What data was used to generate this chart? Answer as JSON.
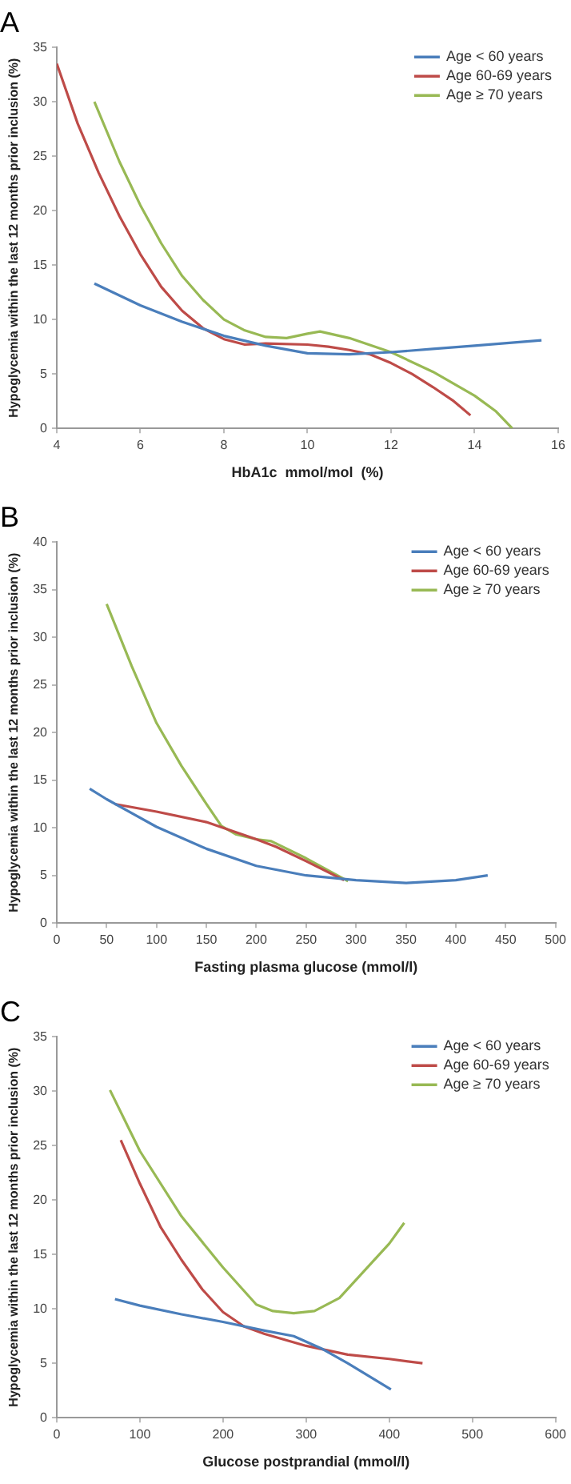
{
  "chart_data": [
    {
      "type": "line",
      "title": "A",
      "xlabel": "HbA1c  mmol/mol  (%)",
      "ylabel": "Hypoglycemia within the last 12 months prior inclusion (%)",
      "xlim": [
        4,
        16
      ],
      "xticks": [
        4,
        6,
        8,
        10,
        12,
        14,
        16
      ],
      "ylim": [
        0,
        35
      ],
      "yticks": [
        0,
        5,
        10,
        15,
        20,
        25,
        30,
        35
      ],
      "grid": false,
      "legend": "top right",
      "marker": "none",
      "series": [
        {
          "name": "Age < 60 years",
          "color": "#4a7ebb",
          "x": [
            4.9,
            6,
            7,
            8,
            9,
            10,
            11,
            12,
            13,
            14,
            15.6
          ],
          "values": [
            13.3,
            11.3,
            9.8,
            8.5,
            7.6,
            6.9,
            6.8,
            7,
            7.3,
            7.6,
            8.1
          ]
        },
        {
          "name": "Age 60-69 years",
          "color": "#be4b48",
          "x": [
            4,
            4.5,
            5,
            5.5,
            6,
            6.5,
            7,
            7.5,
            8,
            8.5,
            9,
            10,
            10.5,
            11,
            11.5,
            12,
            12.5,
            13,
            13.5,
            13.9
          ],
          "values": [
            33.5,
            28,
            23.5,
            19.5,
            16,
            13,
            10.8,
            9.2,
            8.2,
            7.7,
            7.8,
            7.7,
            7.5,
            7.2,
            6.8,
            6,
            5,
            3.8,
            2.5,
            1.2
          ]
        },
        {
          "name": "Age ≥ 70 years",
          "color": "#98b954",
          "x": [
            4.9,
            5.5,
            6,
            6.5,
            7,
            7.5,
            8,
            8.5,
            9,
            9.5,
            10,
            10.3,
            11,
            12,
            13,
            14,
            14.5,
            14.9
          ],
          "values": [
            30,
            24.5,
            20.5,
            17,
            14,
            11.8,
            10,
            9,
            8.4,
            8.3,
            8.7,
            8.9,
            8.3,
            7,
            5.2,
            3,
            1.6,
            0
          ]
        }
      ]
    },
    {
      "type": "line",
      "title": "B",
      "xlabel": "Fasting plasma glucose (mmol/l)",
      "ylabel": "Hypoglycemia within the last 12 months prior inclusion (%)",
      "xlim": [
        0,
        500
      ],
      "xticks": [
        0,
        50,
        100,
        150,
        200,
        250,
        300,
        350,
        400,
        450,
        500
      ],
      "ylim": [
        0,
        40
      ],
      "yticks": [
        0,
        5,
        10,
        15,
        20,
        25,
        30,
        35,
        40
      ],
      "grid": false,
      "legend": "top right",
      "marker": "none",
      "series": [
        {
          "name": "Age < 60 years",
          "color": "#4a7ebb",
          "x": [
            33,
            50,
            100,
            150,
            200,
            250,
            300,
            350,
            400,
            432
          ],
          "values": [
            14.1,
            13,
            10.1,
            7.8,
            6,
            5,
            4.5,
            4.2,
            4.5,
            5
          ]
        },
        {
          "name": "Age 60-69 years",
          "color": "#be4b48",
          "x": [
            58,
            100,
            150,
            200,
            220,
            250,
            288
          ],
          "values": [
            12.5,
            11.7,
            10.6,
            8.8,
            8,
            6.5,
            4.5
          ]
        },
        {
          "name": "Age ≥ 70 years",
          "color": "#98b954",
          "x": [
            50,
            75,
            100,
            125,
            150,
            165,
            180,
            200,
            215,
            250,
            292
          ],
          "values": [
            33.5,
            27,
            21,
            16.5,
            12.5,
            10.2,
            9.3,
            8.8,
            8.6,
            6.8,
            4.4
          ]
        }
      ]
    },
    {
      "type": "line",
      "title": "C",
      "xlabel": "Glucose postprandial (mmol/l)",
      "ylabel": "Hypoglycemia within the last 12 months prior inclusion (%)",
      "xlim": [
        0,
        600
      ],
      "xticks": [
        0,
        100,
        200,
        300,
        400,
        500,
        600
      ],
      "ylim": [
        0,
        35
      ],
      "yticks": [
        0,
        5,
        10,
        15,
        20,
        25,
        30,
        35
      ],
      "grid": false,
      "legend": "top right",
      "marker": "none",
      "series": [
        {
          "name": "Age < 60 years",
          "color": "#4a7ebb",
          "x": [
            70,
            100,
            150,
            200,
            250,
            285,
            320,
            350,
            402
          ],
          "values": [
            10.9,
            10.3,
            9.5,
            8.8,
            8,
            7.5,
            6.3,
            5,
            2.6
          ]
        },
        {
          "name": "Age 60-69 years",
          "color": "#be4b48",
          "x": [
            77,
            100,
            125,
            150,
            175,
            200,
            225,
            250,
            300,
            350,
            400,
            440
          ],
          "values": [
            25.5,
            21.5,
            17.5,
            14.5,
            11.8,
            9.7,
            8.4,
            7.7,
            6.6,
            5.8,
            5.4,
            5
          ]
        },
        {
          "name": "Age ≥ 70 years",
          "color": "#98b954",
          "x": [
            64,
            100,
            150,
            200,
            240,
            260,
            285,
            310,
            340,
            370,
            400,
            418
          ],
          "values": [
            30.1,
            24.5,
            18.5,
            13.8,
            10.4,
            9.8,
            9.6,
            9.8,
            11,
            13.5,
            16,
            17.9
          ]
        }
      ]
    }
  ]
}
